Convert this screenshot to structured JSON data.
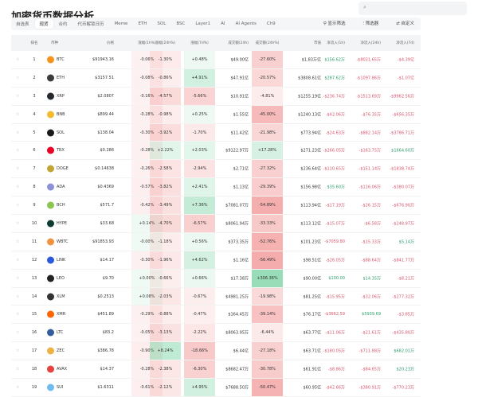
{
  "title": "加密货币数据分析",
  "search": {
    "placeholder": ""
  },
  "tabs": [
    {
      "label": "自选表"
    },
    {
      "label": "现货",
      "active": true
    },
    {
      "label": "合约"
    },
    {
      "label": "代币解锁日历"
    },
    {
      "label": "Meme"
    },
    {
      "label": "ETH"
    },
    {
      "label": "SOL"
    },
    {
      "label": "BSC"
    },
    {
      "label": "Layer1"
    },
    {
      "label": "AI"
    },
    {
      "label": "AI Agents"
    },
    {
      "label": "Ch9"
    }
  ],
  "actions": {
    "show_filter": "显示筛选",
    "filter": "筛选器",
    "customize": "自定义"
  },
  "columns": [
    "排名",
    "币种",
    "价格",
    "涨幅(1h%)",
    "涨幅(24h%)",
    "涨幅(7d%)",
    "成交额(24h)",
    "成交额(24h%)",
    "市值",
    "净流入(1h)",
    "净流入(24h)",
    "净流入(7d)"
  ],
  "colors": {
    "BTC": "#f7931a",
    "ETH": "#3c3c3d",
    "XRP": "#23292f",
    "BNB": "#f3ba2f",
    "SOL": "#1a1a1a",
    "TRX": "#eb0029",
    "DOGE": "#c2a633",
    "ADA": "#8a93d8",
    "BCH": "#8dc351",
    "HYPE": "#0f3b35",
    "WBTC": "#f09242",
    "LINK": "#2a5ada",
    "LEO": "#222222",
    "XLM": "#333333",
    "XMR": "#ff6600",
    "LTC": "#345d9d",
    "ZEC": "#ecb244",
    "AVAX": "#e84142",
    "SUI": "#6fbcf0"
  },
  "rows": [
    [
      "1",
      "BTC",
      "$91943.16",
      "-0.06%",
      "-1.30%",
      "+0.48%",
      "$49.00亿",
      "-27.60%",
      "$1.83万亿",
      "$156.62万",
      "-$8031.65万",
      "-$4.39亿"
    ],
    [
      "2",
      "ETH",
      "$3157.51",
      "-0.08%",
      "-0.86%",
      "+4.91%",
      "$47.91亿",
      "-20.57%",
      "$3808.61亿",
      "$287.62万",
      "-$1097.86万",
      "-$1.07亿"
    ],
    [
      "3",
      "XRP",
      "$2.0807",
      "-0.16%",
      "-4.57%",
      "-5.66%",
      "$10.91亿",
      "-4.81%",
      "$1255.19亿",
      "-$236.74万",
      "-$1513.69万",
      "-$9962.56万"
    ],
    [
      "4",
      "BNB",
      "$899.44",
      "-0.28%",
      "-0.98%",
      "+0.25%",
      "$1.55亿",
      "-45.00%",
      "$1240.13亿",
      "-$42.06万",
      "-$76.35万",
      "-$656.35万"
    ],
    [
      "5",
      "SOL",
      "$138.04",
      "-0.30%",
      "-3.92%",
      "-1.70%",
      "$11.42亿",
      "-21.98%",
      "$773.94亿",
      "-$24.63万",
      "-$882.14万",
      "-$3786.71万"
    ],
    [
      "6",
      "TRX",
      "$0.286",
      "-0.28%",
      "+2.22%",
      "+2.03%",
      "$9122.97万",
      "+17.28%",
      "$271.23亿",
      "-$266.05万",
      "-$163.75万",
      "$1664.60万"
    ],
    [
      "7",
      "DOGE",
      "$0.14638",
      "-0.26%",
      "-2.58%",
      "-2.94%",
      "$2.71亿",
      "-27.32%",
      "$236.64亿",
      "-$110.65万",
      "-$151.14万",
      "-$1838.74万"
    ],
    [
      "8",
      "ADA",
      "$0.4369",
      "-0.57%",
      "-3.82%",
      "+2.41%",
      "$1.13亿",
      "-29.39%",
      "$156.98亿",
      "$35.60万",
      "-$116.06万",
      "-$380.07万"
    ],
    [
      "9",
      "BCH",
      "$571.7",
      "-0.42%",
      "-3.49%",
      "+7.36%",
      "$7081.07万",
      "-54.89%",
      "$113.94亿",
      "-$17.19万",
      "-$26.15万",
      "-$676.90万"
    ],
    [
      "10",
      "HYPE",
      "$33.68",
      "+0.14%",
      "-4.70%",
      "-6.57%",
      "$8061.94万",
      "-33.33%",
      "$113.12亿",
      "-$15.07万",
      "-$6.58万",
      "-$248.97万"
    ],
    [
      "11",
      "WBTC",
      "$91853.93",
      "-0.00%",
      "-1.18%",
      "+0.56%",
      "$373.35万",
      "-52.76%",
      "$101.23亿",
      "-$7059.80",
      "-$15.33万",
      "$5.14万"
    ],
    [
      "12",
      "LINK",
      "$14.17",
      "-0.30%",
      "-1.96%",
      "+4.62%",
      "$1.16亿",
      "-56.49%",
      "$98.51亿",
      "-$26.05万",
      "-$88.64万",
      "-$841.77万"
    ],
    [
      "13",
      "LEO",
      "$9.70",
      "+0.00%",
      "-0.66%",
      "+0.66%",
      "$17.38万",
      "+306.36%",
      "$90.00亿",
      "$100.00",
      "$14.35万",
      "-$8.21万"
    ],
    [
      "14",
      "XLM",
      "$0.2513",
      "+0.08%",
      "-2.03%",
      "-0.67%",
      "$4981.25万",
      "-19.98%",
      "$81.25亿",
      "-$15.95万",
      "-$32.06万",
      "-$277.32万"
    ],
    [
      "15",
      "XMR",
      "$451.89",
      "-0.29%",
      "-0.88%",
      "-0.47%",
      "$164.45万",
      "-39.14%",
      "$76.17亿",
      "-$3662.59",
      "$5939.69",
      "-$3.85万"
    ],
    [
      "16",
      "LTC",
      "$83.2",
      "-0.05%",
      "-3.13%",
      "-2.22%",
      "$8063.95万",
      "-6.44%",
      "$63.77亿",
      "-$11.06万",
      "-$21.61万",
      "-$435.80万"
    ],
    [
      "17",
      "ZEC",
      "$386.78",
      "-0.90%",
      "+8.24%",
      "-18.66%",
      "$6.44亿",
      "-27.18%",
      "$63.71亿",
      "-$180.05万",
      "-$711.88万",
      "$682.01万"
    ],
    [
      "18",
      "AVAX",
      "$14.37",
      "-0.28%",
      "-2.38%",
      "-6.30%",
      "$8682.47万",
      "-30.78%",
      "$61.91亿",
      "-$8.86万",
      "-$84.65万",
      "$20.23万"
    ],
    [
      "19",
      "SUI",
      "$1.6311",
      "-0.61%",
      "-2.12%",
      "+4.95%",
      "$7688.50万",
      "-50.47%",
      "$60.95亿",
      "-$42.66万",
      "-$380.91万",
      "-$770.23万"
    ]
  ]
}
